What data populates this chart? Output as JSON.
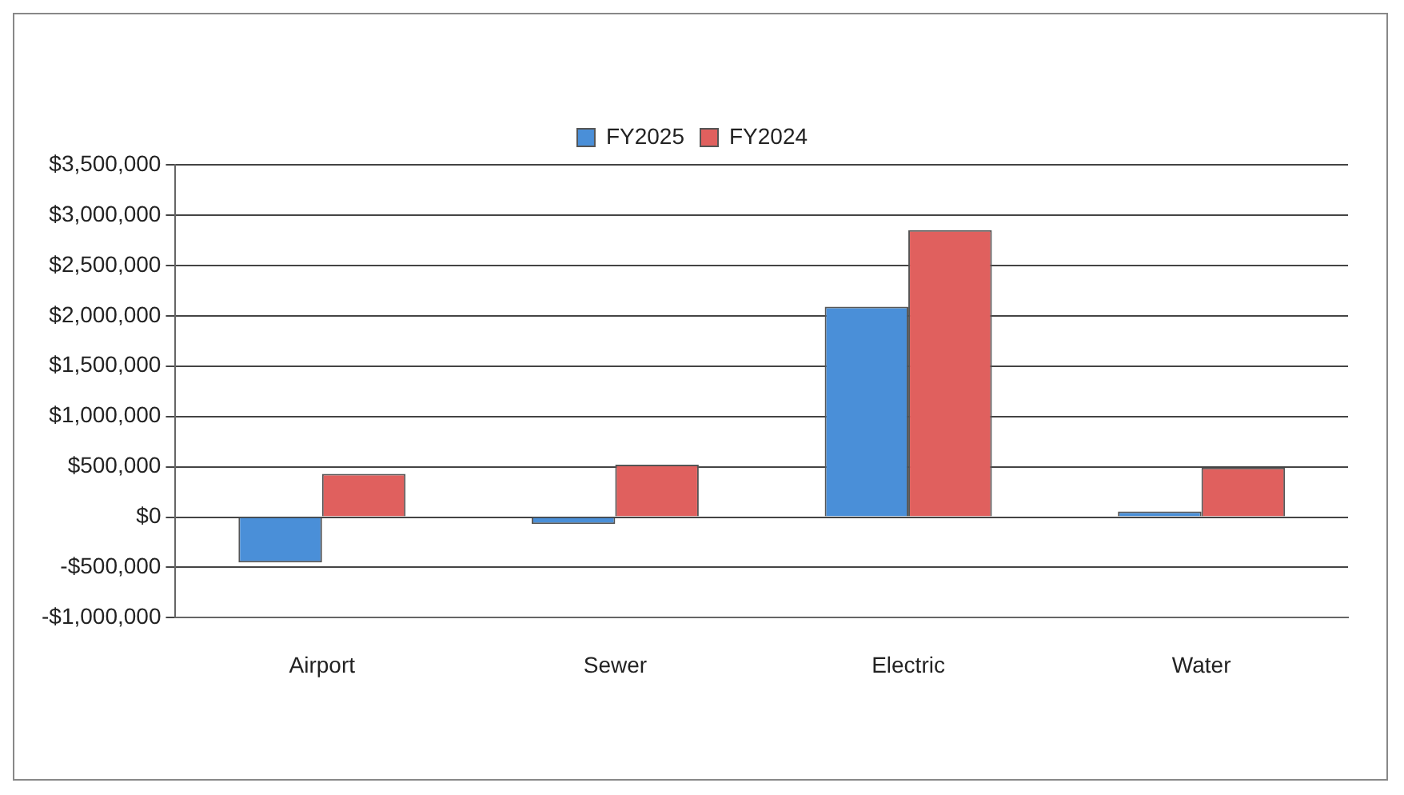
{
  "chart_data": {
    "type": "bar",
    "categories": [
      "Airport",
      "Sewer",
      "Electric",
      "Water"
    ],
    "series": [
      {
        "name": "FY2025",
        "color": "#4a8fd8",
        "values": [
          -450000,
          -70000,
          2090000,
          55000
        ]
      },
      {
        "name": "FY2024",
        "color": "#e0605e",
        "values": [
          430000,
          520000,
          2850000,
          490000
        ]
      }
    ],
    "ylim": [
      -1000000,
      3500000
    ],
    "yticks": [
      {
        "value": -1000000,
        "label": "-$1,000,000"
      },
      {
        "value": -500000,
        "label": "-$500,000"
      },
      {
        "value": 0,
        "label": "$0"
      },
      {
        "value": 500000,
        "label": "$500,000"
      },
      {
        "value": 1000000,
        "label": "$1,000,000"
      },
      {
        "value": 1500000,
        "label": "$1,500,000"
      },
      {
        "value": 2000000,
        "label": "$2,000,000"
      },
      {
        "value": 2500000,
        "label": "$2,500,000"
      },
      {
        "value": 3000000,
        "label": "$3,000,000"
      },
      {
        "value": 3500000,
        "label": "$3,500,000"
      }
    ],
    "grid": "y",
    "legend": "top"
  }
}
